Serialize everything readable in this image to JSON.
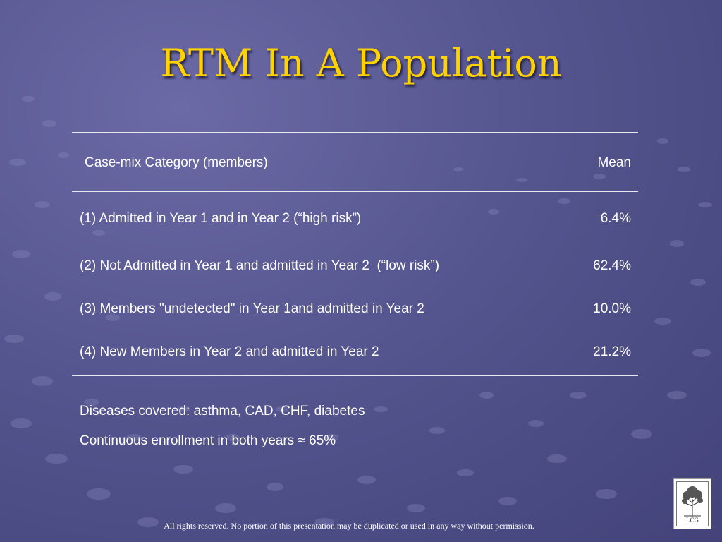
{
  "slide": {
    "title": "RTM In A Population",
    "table": {
      "header": {
        "category": "Case-mix Category (members)",
        "mean": "Mean"
      },
      "rows": [
        {
          "label": "(1) Admitted in Year 1 and in Year 2 (“high risk”)",
          "mean": "6.4%"
        },
        {
          "label": "(2) Not Admitted in Year 1 and admitted in Year 2  (“low risk”)",
          "mean": "62.4%"
        },
        {
          "label": "(3) Members \"undetected\" in Year 1and admitted in Year 2",
          "mean": "10.0%"
        },
        {
          "label": "(4) New Members in Year 2 and admitted in Year 2",
          "mean": "21.2%"
        }
      ]
    },
    "notes": [
      "Diseases covered: asthma, CAD, CHF, diabetes",
      "Continuous enrollment in both years ≈ 65%"
    ],
    "footer": "All rights reserved. No portion of this presentation may be duplicated or used in any way without permission.",
    "logo_text": "LCG"
  },
  "colors": {
    "title": "#ffd200",
    "text": "#ffffff",
    "background": "#55558f"
  }
}
